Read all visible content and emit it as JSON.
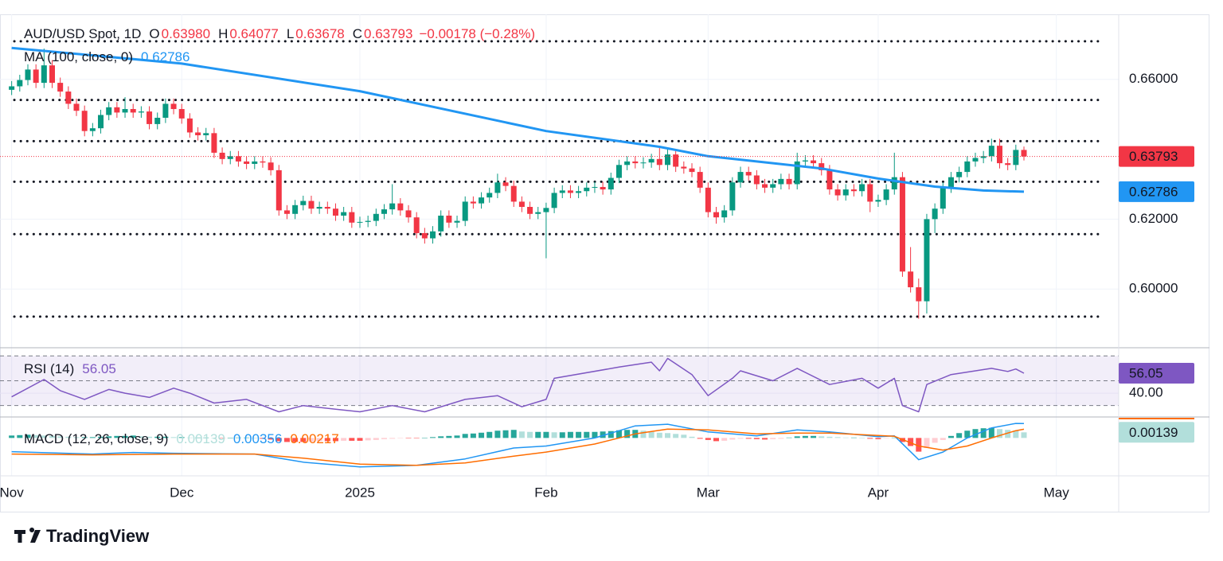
{
  "header": {
    "symbol": "AUD/USD Spot, 1D",
    "ohlc": [
      {
        "key": "O",
        "value": "0.63980"
      },
      {
        "key": "H",
        "value": "0.64077"
      },
      {
        "key": "L",
        "value": "0.63678"
      },
      {
        "key": "C",
        "value": "0.63793"
      }
    ],
    "change": "−0.00178 (−0.28%)"
  },
  "brand": "TradingView",
  "chart_data": [
    {
      "type": "candlestick",
      "up_color": "#089981",
      "down_color": "#f23645",
      "open": [
        0.657,
        0.658,
        0.6598,
        0.6628,
        0.659,
        0.664,
        0.659,
        0.6565,
        0.653,
        0.651,
        0.6452,
        0.646,
        0.6498,
        0.652,
        0.6505,
        0.6515,
        0.6505,
        0.6508,
        0.6472,
        0.649,
        0.653,
        0.6515,
        0.6488,
        0.6448,
        0.644,
        0.6446,
        0.639,
        0.6372,
        0.638,
        0.6365,
        0.6358,
        0.6365,
        0.6362,
        0.634,
        0.6225,
        0.6215,
        0.624,
        0.6252,
        0.623,
        0.6235,
        0.623,
        0.621,
        0.622,
        0.619,
        0.6192,
        0.6195,
        0.6215,
        0.6228,
        0.6245,
        0.6225,
        0.6205,
        0.616,
        0.6145,
        0.6165,
        0.621,
        0.619,
        0.6195,
        0.625,
        0.6245,
        0.6262,
        0.6275,
        0.6305,
        0.6295,
        0.625,
        0.6235,
        0.6215,
        0.622,
        0.6232,
        0.6275,
        0.6282,
        0.6275,
        0.628,
        0.629,
        0.6292,
        0.6285,
        0.6318,
        0.6355,
        0.6365,
        0.636,
        0.6362,
        0.6372,
        0.6355,
        0.6385,
        0.635,
        0.6345,
        0.6335,
        0.629,
        0.622,
        0.6205,
        0.6225,
        0.6305,
        0.6335,
        0.6325,
        0.63,
        0.629,
        0.63,
        0.6315,
        0.63,
        0.6365,
        0.6368,
        0.636,
        0.634,
        0.6285,
        0.6268,
        0.6285,
        0.628,
        0.63,
        0.625,
        0.6255,
        0.6285,
        0.632,
        0.605,
        0.6005,
        0.5965,
        0.62,
        0.623,
        0.629,
        0.632,
        0.6335,
        0.6365,
        0.6375,
        0.638,
        0.641,
        0.636,
        0.6355,
        0.6398
      ],
      "high": [
        0.6595,
        0.6613,
        0.6643,
        0.6643,
        0.6688,
        0.6655,
        0.6605,
        0.658,
        0.6545,
        0.6525,
        0.6475,
        0.6513,
        0.6535,
        0.6535,
        0.6549,
        0.653,
        0.6523,
        0.6523,
        0.6505,
        0.6545,
        0.6545,
        0.653,
        0.6503,
        0.6463,
        0.6461,
        0.6461,
        0.6405,
        0.6395,
        0.6395,
        0.638,
        0.638,
        0.638,
        0.6377,
        0.6355,
        0.624,
        0.6255,
        0.6267,
        0.6267,
        0.625,
        0.625,
        0.6245,
        0.6235,
        0.6235,
        0.6207,
        0.621,
        0.623,
        0.6243,
        0.63,
        0.626,
        0.624,
        0.622,
        0.6175,
        0.618,
        0.6225,
        0.6225,
        0.621,
        0.6265,
        0.6265,
        0.6277,
        0.629,
        0.633,
        0.632,
        0.631,
        0.6265,
        0.625,
        0.6235,
        0.6247,
        0.629,
        0.6297,
        0.6297,
        0.6295,
        0.6305,
        0.6307,
        0.6307,
        0.6333,
        0.637,
        0.638,
        0.638,
        0.6377,
        0.6387,
        0.6408,
        0.64,
        0.64,
        0.6365,
        0.636,
        0.635,
        0.6305,
        0.6235,
        0.624,
        0.632,
        0.635,
        0.635,
        0.634,
        0.6315,
        0.6315,
        0.633,
        0.633,
        0.639,
        0.6383,
        0.6383,
        0.6375,
        0.6355,
        0.63,
        0.63,
        0.63,
        0.6315,
        0.6315,
        0.627,
        0.63,
        0.639,
        0.6335,
        0.612,
        0.603,
        0.6215,
        0.6245,
        0.6305,
        0.6335,
        0.635,
        0.638,
        0.639,
        0.6395,
        0.643,
        0.643,
        0.6375,
        0.6413,
        0.64077
      ],
      "low": [
        0.6555,
        0.6565,
        0.6583,
        0.6575,
        0.6575,
        0.6575,
        0.655,
        0.6515,
        0.6495,
        0.6437,
        0.6437,
        0.6445,
        0.6483,
        0.649,
        0.649,
        0.649,
        0.649,
        0.6457,
        0.6457,
        0.6475,
        0.65,
        0.6473,
        0.6433,
        0.6425,
        0.6425,
        0.6375,
        0.6357,
        0.6357,
        0.635,
        0.6343,
        0.6343,
        0.6347,
        0.6325,
        0.621,
        0.62,
        0.62,
        0.6225,
        0.6215,
        0.6215,
        0.6215,
        0.6195,
        0.6195,
        0.6175,
        0.6175,
        0.6177,
        0.618,
        0.62,
        0.6213,
        0.621,
        0.619,
        0.6145,
        0.613,
        0.613,
        0.615,
        0.6175,
        0.6175,
        0.618,
        0.623,
        0.623,
        0.6247,
        0.626,
        0.628,
        0.6235,
        0.622,
        0.62,
        0.62,
        0.6088,
        0.6217,
        0.626,
        0.626,
        0.626,
        0.6265,
        0.6275,
        0.627,
        0.627,
        0.6303,
        0.634,
        0.6345,
        0.6345,
        0.6347,
        0.634,
        0.634,
        0.6335,
        0.633,
        0.632,
        0.6275,
        0.6205,
        0.6187,
        0.619,
        0.621,
        0.629,
        0.631,
        0.6285,
        0.6275,
        0.6275,
        0.6285,
        0.6285,
        0.6285,
        0.635,
        0.6345,
        0.6325,
        0.627,
        0.6253,
        0.6253,
        0.6265,
        0.6265,
        0.622,
        0.6235,
        0.624,
        0.627,
        0.6035,
        0.599,
        0.5915,
        0.593,
        0.616,
        0.6215,
        0.6275,
        0.6305,
        0.632,
        0.635,
        0.636,
        0.6365,
        0.6345,
        0.634,
        0.634,
        0.63678
      ],
      "close": [
        0.658,
        0.6598,
        0.6628,
        0.659,
        0.664,
        0.659,
        0.6565,
        0.653,
        0.651,
        0.6452,
        0.646,
        0.6498,
        0.652,
        0.6505,
        0.6515,
        0.6505,
        0.6508,
        0.6472,
        0.649,
        0.653,
        0.6515,
        0.6488,
        0.6448,
        0.644,
        0.6446,
        0.639,
        0.6372,
        0.638,
        0.6365,
        0.6358,
        0.6365,
        0.6362,
        0.634,
        0.6225,
        0.6215,
        0.624,
        0.6252,
        0.623,
        0.6235,
        0.623,
        0.621,
        0.622,
        0.619,
        0.6192,
        0.6195,
        0.6215,
        0.6228,
        0.6245,
        0.6225,
        0.6205,
        0.616,
        0.6145,
        0.6165,
        0.621,
        0.619,
        0.6195,
        0.625,
        0.6245,
        0.6262,
        0.6275,
        0.6305,
        0.6295,
        0.625,
        0.6235,
        0.6215,
        0.622,
        0.6232,
        0.6275,
        0.6282,
        0.6275,
        0.628,
        0.629,
        0.6292,
        0.6285,
        0.6318,
        0.6355,
        0.6365,
        0.636,
        0.6362,
        0.6372,
        0.6355,
        0.6385,
        0.635,
        0.6345,
        0.6335,
        0.629,
        0.622,
        0.6205,
        0.6225,
        0.6305,
        0.6335,
        0.6325,
        0.63,
        0.629,
        0.63,
        0.6315,
        0.63,
        0.6365,
        0.6368,
        0.636,
        0.634,
        0.6285,
        0.6268,
        0.6285,
        0.628,
        0.63,
        0.625,
        0.6255,
        0.6285,
        0.632,
        0.605,
        0.6005,
        0.5965,
        0.62,
        0.623,
        0.629,
        0.632,
        0.6335,
        0.6365,
        0.6375,
        0.638,
        0.641,
        0.636,
        0.6355,
        0.6398,
        0.63793
      ],
      "xlim": [
        -1.44,
        136.7
      ],
      "xticks": [
        {
          "value": 0,
          "label": "Nov"
        },
        {
          "value": 21,
          "label": "Dec"
        },
        {
          "value": 43,
          "label": "2025"
        },
        {
          "value": 66,
          "label": "Feb"
        },
        {
          "value": 86,
          "label": "Mar"
        },
        {
          "value": 107,
          "label": "Apr"
        },
        {
          "value": 129,
          "label": "May"
        }
      ],
      "ylim": [
        0.5832,
        0.6786
      ],
      "yticks": [
        {
          "value": 0.6,
          "label": "0.60000"
        },
        {
          "value": 0.62,
          "label": "0.62000"
        },
        {
          "value": 0.66,
          "label": "0.66000"
        }
      ],
      "grid": true,
      "levels": [
        0.6709,
        0.6541,
        0.6423,
        0.6307,
        0.6157,
        0.5921
      ],
      "series": [
        {
          "name": "MA (100, close, 0)",
          "color": "#2196f3",
          "x": [
            0,
            21,
            43,
            66,
            80,
            86,
            100,
            107,
            114,
            120,
            125
          ],
          "values": [
            0.669,
            0.6645,
            0.6566,
            0.6452,
            0.6407,
            0.638,
            0.6345,
            0.6316,
            0.6293,
            0.6282,
            0.62786
          ]
        }
      ]
    },
    {
      "type": "line",
      "series": [
        {
          "name": "RSI (14)",
          "color": "#7e57c2",
          "x": [
            0,
            4,
            6,
            9,
            12,
            14,
            17,
            20,
            22,
            25,
            29,
            33,
            36,
            40,
            43,
            47,
            51,
            56,
            60,
            63,
            66,
            67,
            75,
            79,
            80,
            81,
            84,
            86,
            89,
            90,
            94,
            97,
            101,
            105,
            107,
            109,
            110,
            112,
            113,
            116,
            121,
            123,
            124,
            125
          ],
          "values": [
            37,
            51,
            42,
            35,
            43,
            40,
            36.6,
            44,
            40,
            32,
            35,
            25,
            30,
            27,
            25,
            30,
            25,
            35,
            38,
            29,
            35,
            52,
            61,
            65,
            58,
            68,
            55,
            38,
            52,
            58,
            50,
            60,
            47,
            52,
            44,
            52,
            30,
            25,
            47,
            55,
            60,
            57.5,
            59.5,
            56.05
          ]
        }
      ],
      "ylim": [
        20.8,
        76.6
      ],
      "yticks": [
        {
          "value": 40,
          "label": "40.00"
        }
      ],
      "levels": [
        70,
        50,
        30
      ],
      "band_color": "#7e57c2"
    },
    {
      "type": "macd",
      "title": "MACD (12, 26, close, 9)",
      "histogram": [
        0.0006,
        0.0007,
        0.0008,
        0.0007,
        0.0006,
        0.0005,
        0.0004,
        0.0003,
        0.0002,
        0.0002,
        0.0002,
        0.0003,
        0.0004,
        0.0005,
        0.0005,
        0.0006,
        0.0004,
        0.0003,
        0.0003,
        0.0003,
        0.0002,
        0.0002,
        0.0001,
        0.0001,
        0.0001,
        0,
        -0.0001,
        0,
        0.0001,
        0.0001,
        0,
        -0.0002,
        -0.0004,
        -0.0008,
        -0.001,
        -0.001,
        -0.001,
        -0.0009,
        -0.0008,
        -0.0008,
        -0.0008,
        -0.0007,
        -0.0007,
        -0.0007,
        -0.0006,
        -0.0005,
        -0.0003,
        -0.0002,
        -0.0001,
        -0.0001,
        -0.0001,
        0,
        0.0002,
        0.0004,
        0.0005,
        0.0006,
        0.001,
        0.0011,
        0.0013,
        0.0015,
        0.0018,
        0.0019,
        0.002,
        0.0016,
        0.0015,
        0.0015,
        0.0015,
        0.0014,
        0.0014,
        0.0015,
        0.0015,
        0.0015,
        0.0015,
        0.0016,
        0.0017,
        0.0019,
        0.002,
        0.002,
        0.0018,
        0.0015,
        0.0013,
        0.0012,
        0.001,
        0.0008,
        0.0003,
        -0.0002,
        -0.0005,
        -0.0008,
        -0.0007,
        -0.0004,
        -0.0002,
        -0.0002,
        -0.0003,
        -0.0004,
        -0.0003,
        -0.0002,
        0.0001,
        0.0004,
        0.0005,
        0.0005,
        0.0004,
        0.0003,
        0.0002,
        0.0001,
        0.0001,
        0,
        -0.0002,
        -0.0003,
        -0.0001,
        0.0001,
        -0.001,
        -0.002,
        -0.0034,
        -0.0025,
        -0.0012,
        -0.0005,
        0.0005,
        0.0012,
        0.0018,
        0.0022,
        0.0024,
        0.0025,
        0.0022,
        0.002,
        0.0018,
        0.00139
      ],
      "macd": {
        "color": "#2196f3",
        "x": [
          0,
          10,
          15,
          20,
          30,
          36,
          43,
          50,
          56,
          62,
          66,
          72,
          77,
          81,
          86,
          92,
          97,
          101,
          107,
          109,
          112,
          115,
          118,
          121,
          124,
          125
        ],
        "values": [
          -0.0034,
          -0.004,
          -0.0036,
          -0.0038,
          -0.004,
          -0.006,
          -0.0072,
          -0.0068,
          -0.0052,
          -0.0025,
          -0.002,
          0,
          0.003,
          0.0034,
          0.0015,
          0.0005,
          0.002,
          0.0015,
          0.0003,
          0.0005,
          -0.0054,
          -0.0035,
          0,
          0.0025,
          0.0036,
          0.00356
        ]
      },
      "signal": {
        "color": "#ff6d00",
        "x": [
          0,
          10,
          15,
          20,
          30,
          36,
          43,
          50,
          56,
          62,
          66,
          72,
          77,
          81,
          86,
          92,
          97,
          101,
          107,
          109,
          112,
          115,
          118,
          121,
          124,
          125
        ],
        "values": [
          -0.004,
          -0.0042,
          -0.0041,
          -0.004,
          -0.004,
          -0.005,
          -0.0065,
          -0.0068,
          -0.0062,
          -0.0045,
          -0.0035,
          -0.0015,
          0.001,
          0.0022,
          0.002,
          0.001,
          0.0012,
          0.0012,
          0.0006,
          0.0004,
          -0.002,
          -0.003,
          -0.002,
          0,
          0.0018,
          0.00217
        ]
      },
      "ylim": [
        -0.0094,
        0.0052
      ]
    }
  ]
}
